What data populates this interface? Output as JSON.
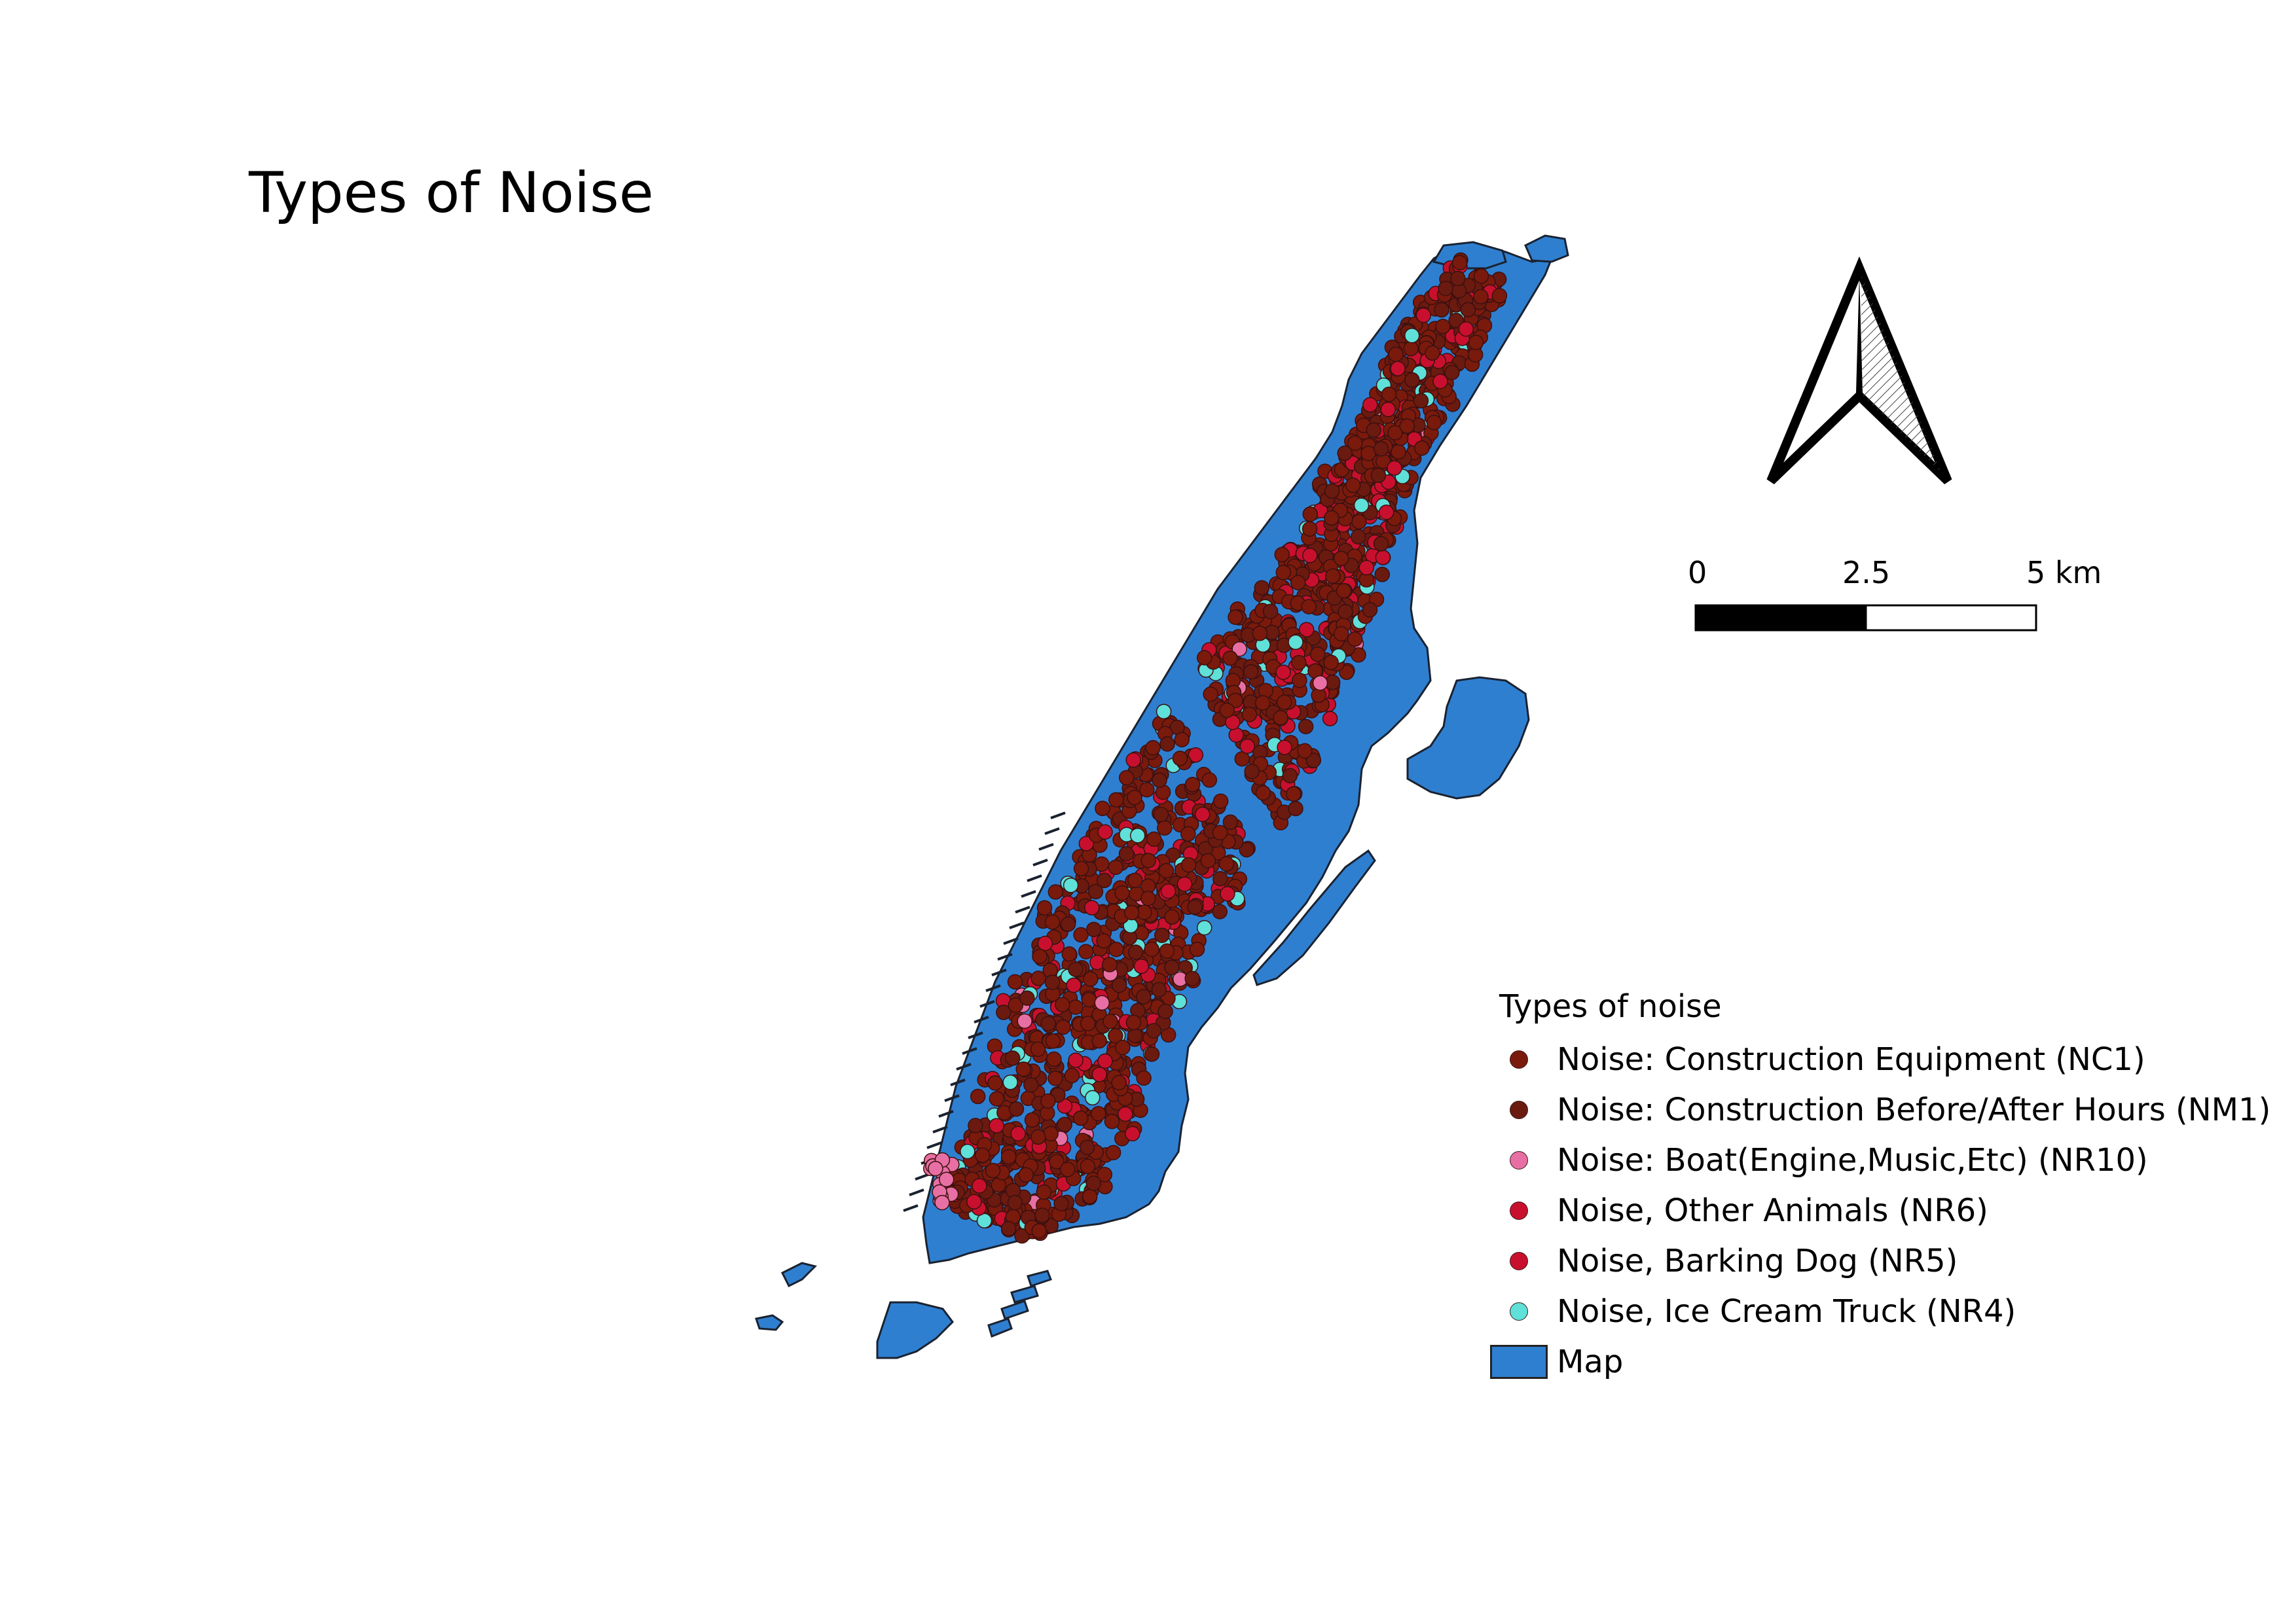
{
  "title": "Types of Noise",
  "scale_bar": {
    "labels": [
      "0",
      "2.5",
      "5 km"
    ]
  },
  "north_arrow": {
    "icon": "north-arrow-icon"
  },
  "legend": {
    "title": "Types of noise",
    "items": [
      {
        "label": "Noise: Construction Equipment (NC1)",
        "color": "#7a1a0c",
        "symbol": "dot"
      },
      {
        "label": "Noise: Construction Before/After Hours (NM1)",
        "color": "#6b1a10",
        "symbol": "dot"
      },
      {
        "label": "Noise: Boat(Engine,Music,Etc) (NR10)",
        "color": "#e86fa3",
        "symbol": "dot"
      },
      {
        "label": "Noise, Other Animals (NR6)",
        "color": "#c8102e",
        "symbol": "dot"
      },
      {
        "label": "Noise, Barking Dog (NR5)",
        "color": "#c8102e",
        "symbol": "dot"
      },
      {
        "label": "Noise, Ice Cream Truck (NR4)",
        "color": "#5fe0d8",
        "symbol": "dot"
      },
      {
        "label": "Map",
        "color": "#2f7fd0",
        "symbol": "rect"
      }
    ]
  },
  "colors": {
    "land": "#2f7fd0",
    "outline": "#1a2230",
    "construction": "#7a1a0c",
    "construction_hours": "#6b1a10",
    "boat": "#e86fa3",
    "animals": "#c8102e",
    "dog": "#c8102e",
    "ice_cream": "#5fe0d8"
  }
}
